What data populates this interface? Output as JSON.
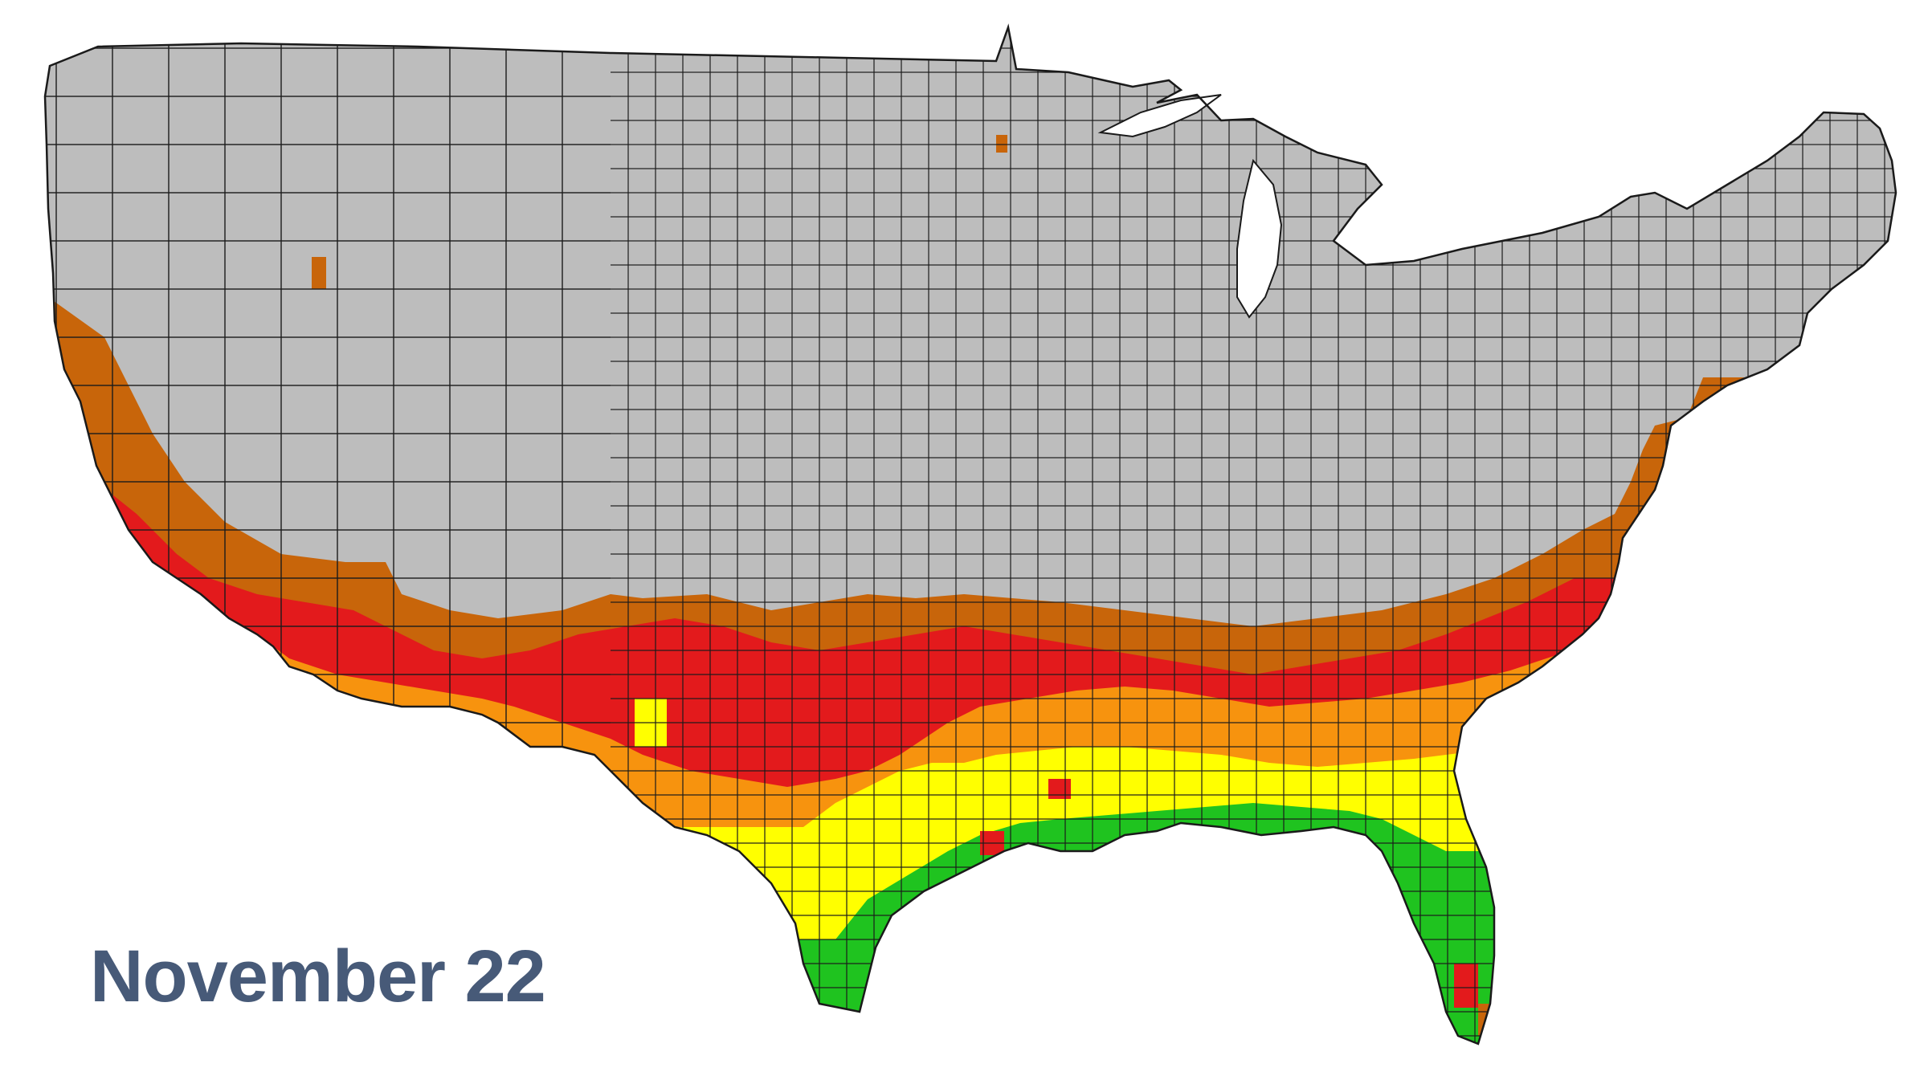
{
  "date_label": "November 22",
  "colors": {
    "date_label": "#475a78",
    "county_border": "#1a1a1a",
    "no_data": "#bdbdbd",
    "water": "#ffffff"
  },
  "color_scale": [
    {
      "key": "gray",
      "hex": "#bdbdbd"
    },
    {
      "key": "brown",
      "hex": "#c8650a"
    },
    {
      "key": "red",
      "hex": "#e31a1c"
    },
    {
      "key": "orange",
      "hex": "#f7930e"
    },
    {
      "key": "yellow",
      "hex": "#ffff00"
    },
    {
      "key": "green",
      "hex": "#1fc31f"
    }
  ]
}
